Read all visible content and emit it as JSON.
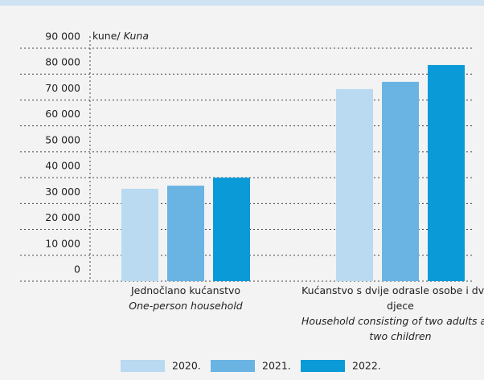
{
  "chart_data": {
    "type": "bar",
    "unit_label": "kune/",
    "unit_label_en": "Kuna",
    "categories": [
      "Jednočlano kućanstvo",
      "Kućanstvo s dvije odrasle osobe i dvoje djece"
    ],
    "categories_en": [
      "One-person household",
      "Household consisting of two adults and two children"
    ],
    "series": [
      {
        "name": "2020.",
        "color": "#b9daf1",
        "values": [
          35700,
          74200
        ]
      },
      {
        "name": "2021.",
        "color": "#6ab4e4",
        "values": [
          36900,
          77000
        ]
      },
      {
        "name": "2022.",
        "color": "#0a9ad8",
        "values": [
          40000,
          83500
        ]
      }
    ],
    "ylim": [
      0,
      90000
    ],
    "yticks": [
      {
        "value": 0,
        "label": "0"
      },
      {
        "value": 10000,
        "label": "10 000"
      },
      {
        "value": 20000,
        "label": "20 000"
      },
      {
        "value": 30000,
        "label": "30 000"
      },
      {
        "value": 40000,
        "label": "40 000"
      },
      {
        "value": 50000,
        "label": "50 000"
      },
      {
        "value": 60000,
        "label": "60 000"
      },
      {
        "value": 70000,
        "label": "70 000"
      },
      {
        "value": 80000,
        "label": "80 000"
      },
      {
        "value": 90000,
        "label": "90 000"
      }
    ],
    "grid": true
  }
}
